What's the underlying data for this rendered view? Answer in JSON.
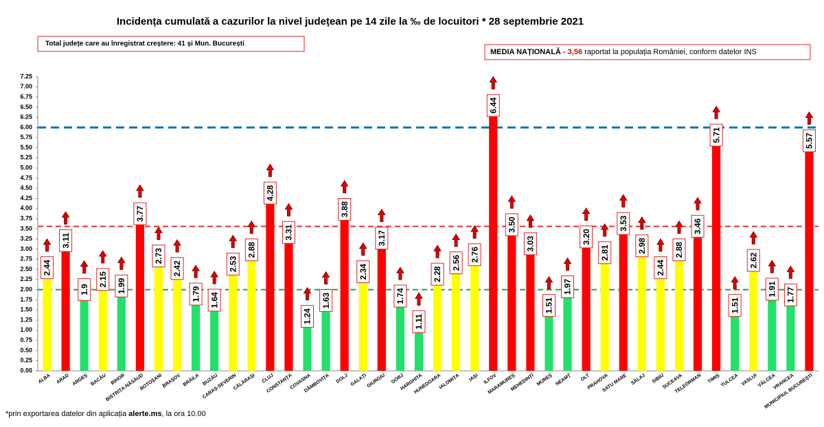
{
  "chart_data": {
    "type": "bar",
    "title": "Incidența cumulată a cazurilor la nivel județean pe 14 zile la ‰ de locuitori * 28 septembrie 2021",
    "annotations": {
      "increase_box": "Total județe care au înregistrat creștere:  41 și Mun. București",
      "media_label": "MEDIA NAȚIONALĂ",
      "media_dash": " - ",
      "media_value": "3,56",
      "media_text": " raportat la populația României, conform datelor INS",
      "footnote_start": "*prin exportarea datelor din aplicația ",
      "footnote_app": "alerte.ms",
      "footnote_end": ", la ora 10.00"
    },
    "categories": [
      "ALBA",
      "ARAD",
      "ARGEȘ",
      "BACĂU",
      "BIHOR",
      "BISTRIȚA-NĂSĂUD",
      "BOTOȘANI",
      "BRAȘOV",
      "BRĂILA",
      "BUZĂU",
      "CARAȘ-SEVERIN",
      "CĂLĂRAȘI",
      "CLUJ",
      "CONSTANȚA",
      "COVASNA",
      "DÂMBOVIȚA",
      "DOLJ",
      "GALAȚI",
      "GIURGIU",
      "GORJ",
      "HARGHITA",
      "HUNEDOARA",
      "IALOMIȚA",
      "IAȘI",
      "ILFOV",
      "MARAMUREȘ",
      "MEHEDINȚI",
      "MUREȘ",
      "NEAMȚ",
      "OLT",
      "PRAHOVA",
      "SATU MARE",
      "SĂLAJ",
      "SIBIU",
      "SUCEAVA",
      "TELEORMAN",
      "TIMIȘ",
      "TULCEA",
      "VASLUI",
      "VÂLCEA",
      "VRANCEA",
      "MUNICIPIUL BUCUREȘTI"
    ],
    "values": [
      2.44,
      3.11,
      1.9,
      2.15,
      1.99,
      3.77,
      2.73,
      2.42,
      1.79,
      1.64,
      2.53,
      2.88,
      4.28,
      3.31,
      1.24,
      1.63,
      3.88,
      2.34,
      3.17,
      1.74,
      1.11,
      2.28,
      2.56,
      2.76,
      6.44,
      3.5,
      3.03,
      1.51,
      1.97,
      3.2,
      2.81,
      3.53,
      2.98,
      2.44,
      2.88,
      3.46,
      5.71,
      1.51,
      2.62,
      1.91,
      1.77,
      5.57
    ],
    "value_labels": [
      "2.44",
      "3.11",
      "1.9",
      "2.15",
      "1.99",
      "3.77",
      "2.73",
      "2.42",
      "1.79",
      "1.64",
      "2.53",
      "2.88",
      "4.28",
      "3.31",
      "1.24",
      "1.63",
      "3.88",
      "2.34",
      "3.17",
      "1.74",
      "1.11",
      "2.28",
      "2.56",
      "2.76",
      "6.44",
      "3.50",
      "3.03",
      "1.51",
      "1.97",
      "3.20",
      "2.81",
      "3.53",
      "2.98",
      "2.44",
      "2.88",
      "3.46",
      "5.71",
      "1.51",
      "2.62",
      "1.91",
      "1.77",
      "5.57"
    ],
    "colors": [
      "#ffff00",
      "#ff0000",
      "#22e06a",
      "#ffff00",
      "#22e06a",
      "#ff0000",
      "#ffff00",
      "#ffff00",
      "#22e06a",
      "#22e06a",
      "#ffff00",
      "#ffff00",
      "#ff0000",
      "#ff0000",
      "#22e06a",
      "#22e06a",
      "#ff0000",
      "#ffff00",
      "#ff0000",
      "#22e06a",
      "#22e06a",
      "#ffff00",
      "#ffff00",
      "#ffff00",
      "#ff0000",
      "#ff0000",
      "#ff0000",
      "#22e06a",
      "#22e06a",
      "#ff0000",
      "#ffff00",
      "#ff0000",
      "#ffff00",
      "#ffff00",
      "#ffff00",
      "#ff0000",
      "#ff0000",
      "#22e06a",
      "#ffff00",
      "#22e06a",
      "#22e06a",
      "#ff0000"
    ],
    "ylim": [
      0,
      7.25
    ],
    "yticks": [
      {
        "value": 0,
        "label": "0.00"
      },
      0.25,
      {
        "value": 0.5,
        "label": "0.50"
      },
      0.75,
      {
        "value": 1,
        "label": "1.00"
      },
      1.25,
      {
        "value": 1.5,
        "label": "1.50"
      },
      1.75,
      {
        "value": 2,
        "label": "2.00"
      },
      2.25,
      {
        "value": 2.5,
        "label": "2.50"
      },
      2.75,
      {
        "value": 3,
        "label": "3.00"
      },
      3.25,
      {
        "value": 3.5,
        "label": "3.50"
      },
      3.75,
      {
        "value": 4,
        "label": "4.00"
      },
      4.25,
      {
        "value": 4.5,
        "label": "4.50"
      },
      4.75,
      {
        "value": 5,
        "label": "5.00"
      },
      5.25,
      {
        "value": 5.5,
        "label": "5.50"
      },
      5.75,
      {
        "value": 6,
        "label": "6.00"
      },
      6.25,
      {
        "value": 6.5,
        "label": "6.50"
      },
      6.75,
      {
        "value": 7,
        "label": "7.00"
      },
      7.25
    ],
    "reference_lines": [
      {
        "value": 6,
        "color": "#0070c0"
      },
      {
        "value": 3.56,
        "color": "#e03030"
      },
      {
        "value": 2,
        "color": "#20a040"
      }
    ],
    "arrow_color": "#e00000"
  }
}
